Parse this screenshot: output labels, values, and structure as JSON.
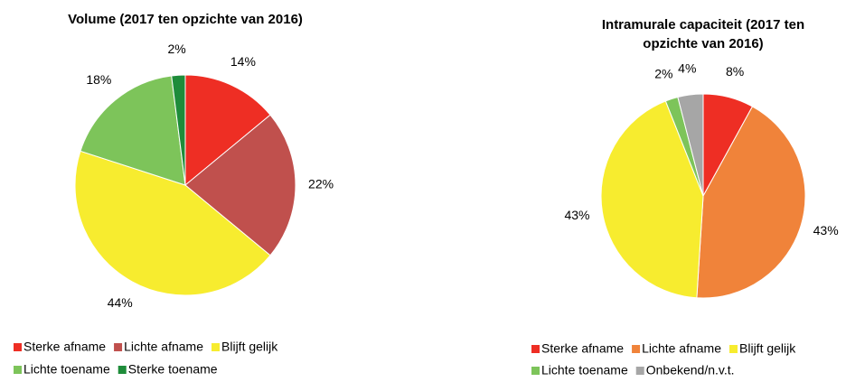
{
  "chart_data": [
    {
      "type": "pie",
      "title": [
        "Volume (2017 ten opzichte van 2016)"
      ],
      "categories": [
        "Sterke afname",
        "Lichte afname",
        "Blijft gelijk",
        "Lichte toename",
        "Sterke toename"
      ],
      "values": [
        14,
        22,
        44,
        18,
        2
      ],
      "value_labels": [
        "14%",
        "22%",
        "44%",
        "18%",
        "2%"
      ],
      "colors": [
        "#ee2e24",
        "#c0504d",
        "#f7ec2f",
        "#7dc45a",
        "#1e8c3a"
      ]
    },
    {
      "type": "pie",
      "title": [
        "Intramurale capaciteit  (2017 ten",
        "opzichte van 2016)"
      ],
      "categories": [
        "Sterke afname",
        "Lichte afname",
        "Blijft gelijk",
        "Lichte toename",
        "Onbekend/n.v.t."
      ],
      "values": [
        8,
        43,
        43,
        2,
        4
      ],
      "value_labels": [
        "8%",
        "43%",
        "43%",
        "2%",
        "4%"
      ],
      "colors": [
        "#ee2e24",
        "#f0833a",
        "#f7ec2f",
        "#7dc45a",
        "#a6a6a6"
      ]
    }
  ]
}
